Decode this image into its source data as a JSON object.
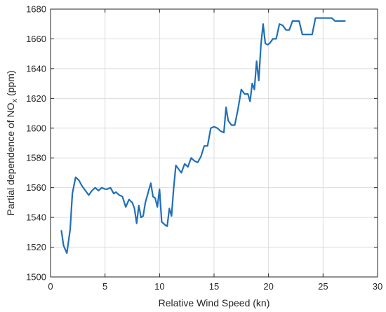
{
  "chart_data": {
    "type": "line",
    "xlabel": "Relative Wind Speed (kn)",
    "ylabel_main": "Partial dependence of NO",
    "ylabel_sub": "x",
    "ylabel_unit": " (ppm)",
    "xlim": [
      0,
      30
    ],
    "ylim": [
      1500,
      1680
    ],
    "xticks": [
      "0",
      "5",
      "10",
      "15",
      "20",
      "25",
      "30"
    ],
    "yticks": [
      "1500",
      "1520",
      "1540",
      "1560",
      "1580",
      "1600",
      "1620",
      "1640",
      "1660",
      "1680"
    ],
    "grid": true,
    "line_color": "#1f70b8",
    "series": [
      {
        "x": [
          1.0,
          1.2,
          1.5,
          1.8,
          2.0,
          2.3,
          2.6,
          2.9,
          3.2,
          3.5,
          3.8,
          4.1,
          4.4,
          4.7,
          5.0,
          5.2,
          5.5,
          5.8,
          6.0,
          6.3,
          6.6,
          6.9,
          7.2,
          7.5,
          7.7,
          7.9,
          8.1,
          8.3,
          8.5,
          8.7,
          9.0,
          9.2,
          9.4,
          9.6,
          9.8,
          10.0,
          10.2,
          10.5,
          10.7,
          10.9,
          11.1,
          11.3,
          11.5,
          11.7,
          12.0,
          12.3,
          12.6,
          12.9,
          13.2,
          13.5,
          13.8,
          14.1,
          14.4,
          14.7,
          15.0,
          15.3,
          15.6,
          15.9,
          16.1,
          16.3,
          16.6,
          16.9,
          17.2,
          17.5,
          17.8,
          18.1,
          18.3,
          18.5,
          18.7,
          18.9,
          19.1,
          19.3,
          19.5,
          19.7,
          19.9,
          20.1,
          20.4,
          20.7,
          21.0,
          21.3,
          21.6,
          21.9,
          22.2,
          22.5,
          22.8,
          23.1,
          23.4,
          23.7,
          24.0,
          24.3,
          24.6,
          24.9,
          25.2,
          25.5,
          25.8,
          26.1,
          26.4,
          26.7,
          27.0
        ],
        "y": [
          1531,
          1521,
          1516,
          1532,
          1556,
          1567,
          1565,
          1561,
          1558,
          1555,
          1558,
          1560,
          1558,
          1560,
          1559,
          1559,
          1560,
          1556,
          1557,
          1555,
          1554,
          1547,
          1552,
          1550,
          1546,
          1536,
          1548,
          1540,
          1541,
          1550,
          1558,
          1563,
          1554,
          1553,
          1547,
          1559,
          1537,
          1535,
          1534,
          1546,
          1541,
          1560,
          1575,
          1573,
          1570,
          1576,
          1574,
          1580,
          1578,
          1577,
          1581,
          1588,
          1588,
          1600,
          1601,
          1600,
          1598,
          1597,
          1614,
          1605,
          1602,
          1602,
          1613,
          1626,
          1623,
          1623,
          1618,
          1630,
          1626,
          1645,
          1632,
          1656,
          1670,
          1657,
          1656,
          1657,
          1660,
          1660,
          1670,
          1669,
          1666,
          1666,
          1672,
          1672,
          1672,
          1663,
          1663,
          1663,
          1663,
          1674,
          1674,
          1674,
          1674,
          1674,
          1674,
          1672,
          1672,
          1672,
          1672
        ]
      }
    ]
  }
}
